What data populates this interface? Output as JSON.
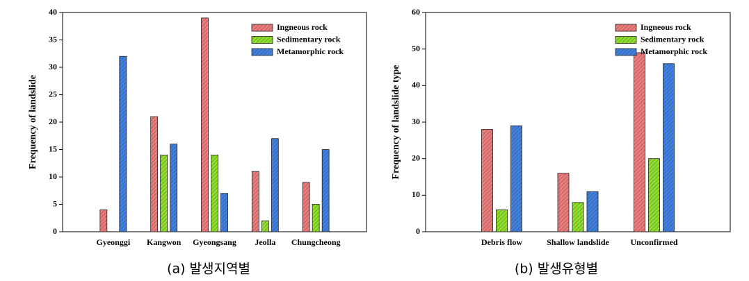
{
  "chart_data": [
    {
      "type": "bar",
      "caption": "(a) 발생지역별",
      "y_label": "Frequency of landslide",
      "categories": [
        "Gyeonggi",
        "Kangwon",
        "Gyeongsang",
        "Jeolla",
        "Chungcheong"
      ],
      "series": [
        {
          "name": "Ingneous rock",
          "color": "#ee7b7b",
          "values": [
            4,
            21,
            39,
            11,
            9
          ]
        },
        {
          "name": "Sedimentary rock",
          "color": "#8ee02a",
          "values": [
            0,
            14,
            14,
            2,
            5
          ]
        },
        {
          "name": "Metamorphic rock",
          "color": "#3f7fe0",
          "values": [
            32,
            16,
            7,
            17,
            15
          ]
        }
      ],
      "ylim": [
        0,
        40
      ],
      "yticks": [
        0,
        5,
        10,
        15,
        20,
        25,
        30,
        35,
        40
      ],
      "legend": "upper right",
      "hatch": true
    },
    {
      "type": "bar",
      "caption": "(b) 발생유형별",
      "y_label": "Frequency of landslide type",
      "categories": [
        "Debris flow",
        "Shallow landslide",
        "Unconfirmed"
      ],
      "series": [
        {
          "name": "Ingneous rock",
          "color": "#ee7b7b",
          "values": [
            28,
            16,
            49
          ]
        },
        {
          "name": "Sedimentary rock",
          "color": "#8ee02a",
          "values": [
            6,
            8,
            20
          ]
        },
        {
          "name": "Metamorphic rock",
          "color": "#3f7fe0",
          "values": [
            29,
            11,
            46
          ]
        }
      ],
      "ylim": [
        0,
        60
      ],
      "yticks": [
        0,
        10,
        20,
        30,
        40,
        50,
        60
      ],
      "legend": "upper right",
      "hatch": true
    }
  ]
}
